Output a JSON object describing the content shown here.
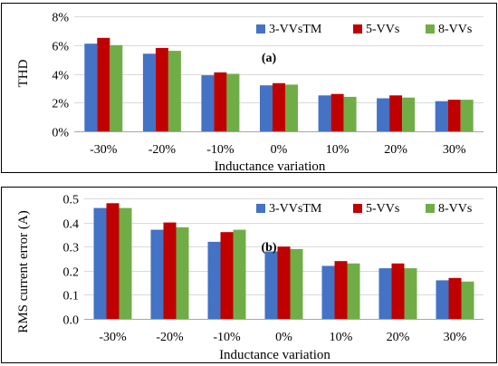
{
  "chart_data": [
    {
      "type": "bar",
      "panel_label": "(a)",
      "categories": [
        "-30%",
        "-20%",
        "-10%",
        "0%",
        "10%",
        "20%",
        "30%"
      ],
      "series": [
        {
          "name": "3-VVsTM",
          "color": "#4472c4",
          "values": [
            6.1,
            5.4,
            3.9,
            3.2,
            2.5,
            2.3,
            2.1
          ]
        },
        {
          "name": "5-VVs",
          "color": "#c00000",
          "values": [
            6.5,
            5.8,
            4.1,
            3.35,
            2.6,
            2.5,
            2.2
          ]
        },
        {
          "name": "8-VVs",
          "color": "#70ad47",
          "values": [
            6.0,
            5.6,
            4.0,
            3.25,
            2.4,
            2.35,
            2.2
          ]
        }
      ],
      "xlabel": "Inductance variation",
      "ylabel": "THD",
      "ylim": [
        0,
        8
      ],
      "yticks": [
        0,
        2,
        4,
        6,
        8
      ],
      "ytick_labels": [
        "0%",
        "2%",
        "4%",
        "6%",
        "8%"
      ],
      "grid": true,
      "legend_position": "top-right"
    },
    {
      "type": "bar",
      "panel_label": "(b)",
      "categories": [
        "-30%",
        "-20%",
        "-10%",
        "0%",
        "10%",
        "20%",
        "30%"
      ],
      "series": [
        {
          "name": "3-VVsTM",
          "color": "#4472c4",
          "values": [
            0.46,
            0.37,
            0.32,
            0.28,
            0.22,
            0.21,
            0.16
          ]
        },
        {
          "name": "5-VVs",
          "color": "#c00000",
          "values": [
            0.48,
            0.4,
            0.36,
            0.3,
            0.24,
            0.23,
            0.17
          ]
        },
        {
          "name": "8-VVs",
          "color": "#70ad47",
          "values": [
            0.46,
            0.38,
            0.37,
            0.29,
            0.23,
            0.21,
            0.155
          ]
        }
      ],
      "xlabel": "Inductance variation",
      "ylabel": "RMS current error (A)",
      "ylim": [
        0,
        0.5
      ],
      "yticks": [
        0,
        0.1,
        0.2,
        0.3,
        0.4,
        0.5
      ],
      "ytick_labels": [
        "0.0",
        "0.1",
        "0.2",
        "0.3",
        "0.4",
        "0.5"
      ],
      "grid": true,
      "legend_position": "top-right"
    }
  ]
}
